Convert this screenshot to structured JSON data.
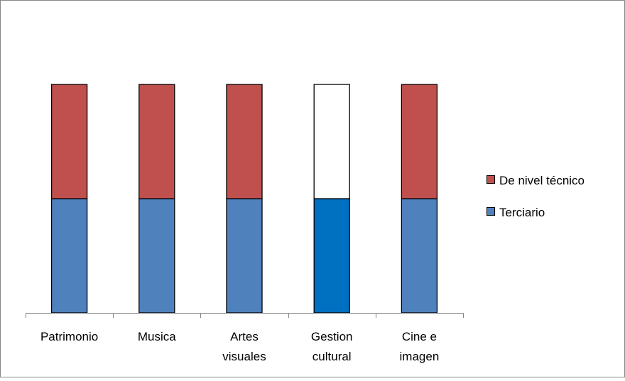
{
  "chart_data": {
    "type": "bar",
    "stacked": true,
    "title": "",
    "xlabel": "",
    "ylabel": "",
    "ylim": [
      0,
      2
    ],
    "grid": false,
    "legend_position": "right",
    "categories": [
      [
        "Patrimonio"
      ],
      [
        "Musica"
      ],
      [
        "Artes",
        "visuales"
      ],
      [
        "Gestion",
        "cultural"
      ],
      [
        "Cine e",
        "imagen"
      ]
    ],
    "series": [
      {
        "name": "Terciario",
        "values": [
          1,
          1,
          1,
          1,
          1
        ],
        "color": "#4F81BD",
        "point_colors": [
          "#4F81BD",
          "#4F81BD",
          "#4F81BD",
          "#0070C0",
          "#4F81BD"
        ]
      },
      {
        "name": "De nivel técnico",
        "values": [
          1,
          1,
          1,
          1,
          1
        ],
        "color": "#C0504D",
        "point_colors": [
          "#C0504D",
          "#C0504D",
          "#C0504D",
          "#FFFFFF",
          "#C0504D"
        ]
      }
    ],
    "legend_order": [
      1,
      0
    ],
    "frame_color": "#868686",
    "axis_color": "#868686",
    "bar_stroke_color": "#000000"
  }
}
